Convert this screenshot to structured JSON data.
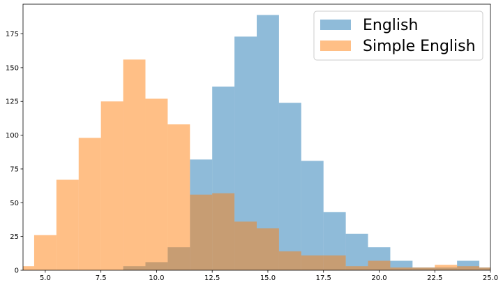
{
  "chart_data": {
    "type": "bar",
    "subtype": "overlapping-histogram",
    "title": "",
    "xlabel": "",
    "ylabel": "",
    "xlim": [
      4,
      25
    ],
    "ylim": [
      0,
      197
    ],
    "x_ticks": [
      5.0,
      7.5,
      10.0,
      12.5,
      15.0,
      17.5,
      20.0,
      22.5,
      25.0
    ],
    "x_tick_labels": [
      "5.0",
      "7.5",
      "10.0",
      "12.5",
      "15.0",
      "17.5",
      "20.0",
      "22.5",
      "25.0"
    ],
    "y_ticks": [
      0,
      25,
      50,
      75,
      100,
      125,
      150,
      175
    ],
    "y_tick_labels": [
      "0",
      "25",
      "50",
      "75",
      "100",
      "125",
      "150",
      "175"
    ],
    "grid": false,
    "legend_position": "top-right",
    "series": [
      {
        "name": "English",
        "color": "#1f77b4",
        "alpha": 0.5,
        "bins": [
          {
            "x0": 8.5,
            "x1": 9.5,
            "count": 3
          },
          {
            "x0": 9.5,
            "x1": 10.5,
            "count": 6
          },
          {
            "x0": 10.5,
            "x1": 11.5,
            "count": 17
          },
          {
            "x0": 11.5,
            "x1": 12.5,
            "count": 82
          },
          {
            "x0": 12.5,
            "x1": 13.5,
            "count": 136
          },
          {
            "x0": 13.5,
            "x1": 14.5,
            "count": 173
          },
          {
            "x0": 14.5,
            "x1": 15.5,
            "count": 189
          },
          {
            "x0": 15.5,
            "x1": 16.5,
            "count": 124
          },
          {
            "x0": 16.5,
            "x1": 17.5,
            "count": 81
          },
          {
            "x0": 17.5,
            "x1": 18.5,
            "count": 43
          },
          {
            "x0": 18.5,
            "x1": 19.5,
            "count": 27
          },
          {
            "x0": 19.5,
            "x1": 20.5,
            "count": 17
          },
          {
            "x0": 20.5,
            "x1": 21.5,
            "count": 7
          },
          {
            "x0": 21.5,
            "x1": 22.5,
            "count": 2
          },
          {
            "x0": 22.5,
            "x1": 23.5,
            "count": 2
          },
          {
            "x0": 23.5,
            "x1": 24.5,
            "count": 7
          },
          {
            "x0": 24.5,
            "x1": 25.5,
            "count": 2
          }
        ]
      },
      {
        "name": "Simple English",
        "color": "#ff7f0e",
        "alpha": 0.5,
        "bins": [
          {
            "x0": 3.5,
            "x1": 4.5,
            "count": 3
          },
          {
            "x0": 4.5,
            "x1": 5.5,
            "count": 26
          },
          {
            "x0": 5.5,
            "x1": 6.5,
            "count": 67
          },
          {
            "x0": 6.5,
            "x1": 7.5,
            "count": 98
          },
          {
            "x0": 7.5,
            "x1": 8.5,
            "count": 125
          },
          {
            "x0": 8.5,
            "x1": 9.5,
            "count": 156
          },
          {
            "x0": 9.5,
            "x1": 10.5,
            "count": 127
          },
          {
            "x0": 10.5,
            "x1": 11.5,
            "count": 108
          },
          {
            "x0": 11.5,
            "x1": 12.5,
            "count": 56
          },
          {
            "x0": 12.5,
            "x1": 13.5,
            "count": 57
          },
          {
            "x0": 13.5,
            "x1": 14.5,
            "count": 36
          },
          {
            "x0": 14.5,
            "x1": 15.5,
            "count": 31
          },
          {
            "x0": 15.5,
            "x1": 16.5,
            "count": 14
          },
          {
            "x0": 16.5,
            "x1": 17.5,
            "count": 11
          },
          {
            "x0": 17.5,
            "x1": 18.5,
            "count": 11
          },
          {
            "x0": 18.5,
            "x1": 19.5,
            "count": 3
          },
          {
            "x0": 19.5,
            "x1": 20.5,
            "count": 7
          },
          {
            "x0": 20.5,
            "x1": 21.5,
            "count": 2
          },
          {
            "x0": 21.5,
            "x1": 22.5,
            "count": 2
          },
          {
            "x0": 22.5,
            "x1": 23.5,
            "count": 4
          },
          {
            "x0": 23.5,
            "x1": 24.5,
            "count": 3
          },
          {
            "x0": 24.5,
            "x1": 25.5,
            "count": 2
          }
        ]
      }
    ]
  }
}
